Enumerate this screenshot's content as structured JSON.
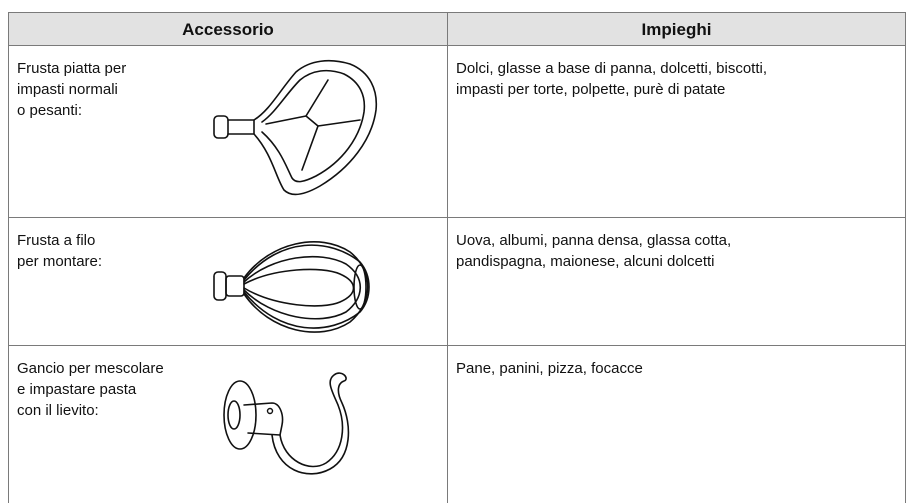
{
  "table": {
    "headers": [
      "Accessorio",
      "Impieghi"
    ],
    "rows": [
      [
        [
          "Frusta piatta per",
          "impasti normali",
          "o pesanti:"
        ],
        [
          "Dolci, glasse a base di panna, dolcetti, biscotti,",
          "impasti per torte, polpette, purè di patate"
        ]
      ],
      [
        [
          "Frusta a filo",
          "per montare:"
        ],
        [
          "Uova, albumi, panna densa, glassa cotta,",
          "pandispagna, maionese, alcuni dolcetti"
        ]
      ],
      [
        [
          "Gancio per mescolare",
          "e impastare pasta",
          "con il lievito:"
        ],
        [
          "Pane, panini, pizza, focacce"
        ]
      ]
    ]
  }
}
